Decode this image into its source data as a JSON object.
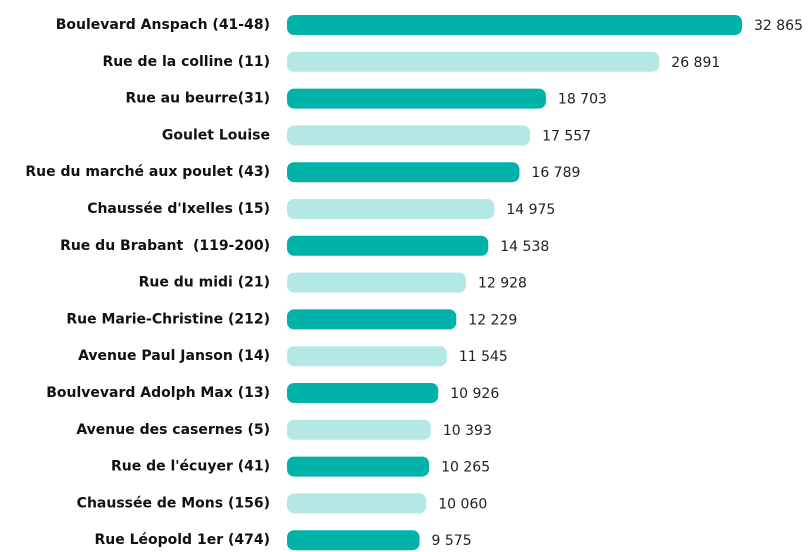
{
  "chart_data": {
    "type": "bar",
    "orientation": "horizontal",
    "categories": [
      "Boulevard Anspach (41-48)",
      "Rue de la colline (11)",
      "Rue au beurre(31)",
      "Goulet Louise",
      "Rue du marché aux poulet (43)",
      "Chaussée d'Ixelles (15)",
      "Rue du Brabant  (119-200)",
      "Rue du midi (21)",
      "Rue Marie-Christine (212)",
      "Avenue Paul Janson (14)",
      "Boulvevard Adolph Max (13)",
      "Avenue des casernes (5)",
      "Rue de l'écuyer (41)",
      "Chaussée de Mons (156)",
      "Rue Léopold 1er (474)"
    ],
    "values": [
      32865,
      26891,
      18703,
      17557,
      16789,
      14975,
      14538,
      12928,
      12229,
      11545,
      10926,
      10393,
      10265,
      10060,
      9575
    ],
    "value_labels": [
      "32 865",
      "26 891",
      "18 703",
      "17 557",
      "16 789",
      "14 975",
      "14 538",
      "12 928",
      "12 229",
      "11 545",
      "10 926",
      "10 393",
      "10 265",
      "10 060",
      "9 575"
    ],
    "colors": [
      "#00b2a9",
      "#b3e8e5",
      "#00b2a9",
      "#b3e8e5",
      "#00b2a9",
      "#b3e8e5",
      "#00b2a9",
      "#b3e8e5",
      "#00b2a9",
      "#b3e8e5",
      "#00b2a9",
      "#b3e8e5",
      "#00b2a9",
      "#b3e8e5",
      "#00b2a9"
    ]
  }
}
